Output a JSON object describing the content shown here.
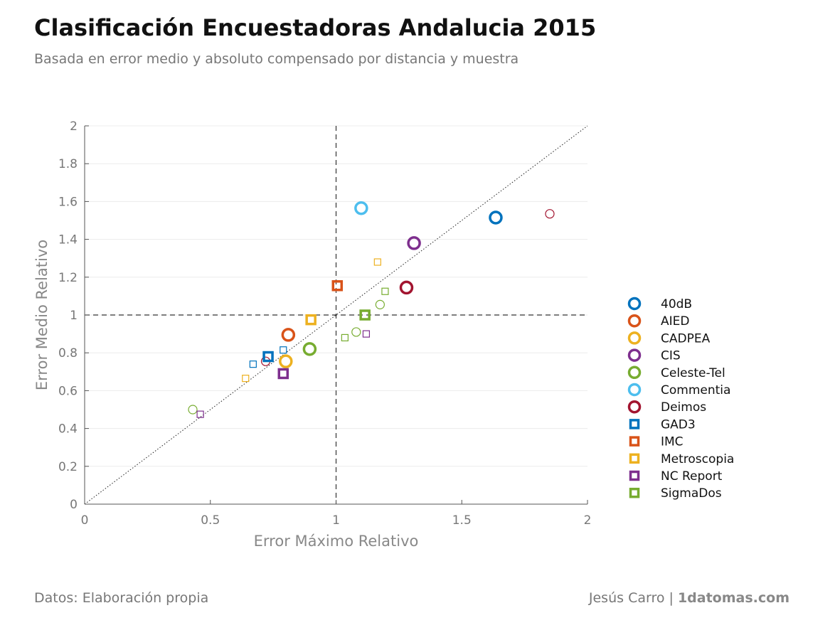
{
  "header": {
    "title": "Clasificación Encuestadoras Andalucia 2015",
    "subtitle": "Basada en error medio y absoluto compensado por distancia y muestra"
  },
  "footer": {
    "source": "Datos: Elaboración propia",
    "author": "Jesús Carro | ",
    "site": "1datomas.com"
  },
  "chart_data": {
    "type": "scatter",
    "title": "Clasificación Encuestadoras Andalucia 2015",
    "subtitle": "Basada en error medio y absoluto compensado por distancia y muestra",
    "xlabel": "Error Máximo Relativo",
    "ylabel": "Error Medio Relativo",
    "xlim": [
      0,
      2
    ],
    "ylim": [
      0,
      2
    ],
    "xticks": [
      0,
      0.5,
      1,
      1.5,
      2
    ],
    "xtick_labels": [
      "0",
      "0.5",
      "1",
      "1.5",
      "2"
    ],
    "yticks": [
      0,
      0.2,
      0.4,
      0.6,
      0.8,
      1,
      1.2,
      1.4,
      1.6,
      1.8,
      2
    ],
    "ytick_labels": [
      "0",
      "0.2",
      "0.4",
      "0.6",
      "0.8",
      "1",
      "1.2",
      "1.4",
      "1.6",
      "1.8",
      "2"
    ],
    "grid": "horizontal",
    "reference_lines": {
      "vertical_x": 1,
      "horizontal_y": 1,
      "diagonal": true
    },
    "legend_position": "right",
    "series": [
      {
        "name": "40dB",
        "marker": "circle",
        "color": "#0072BD",
        "points": [
          {
            "x": 1.635,
            "y": 1.515
          }
        ]
      },
      {
        "name": "AIED",
        "marker": "circle",
        "color": "#D95319",
        "points": [
          {
            "x": 0.81,
            "y": 0.895
          }
        ]
      },
      {
        "name": "CADPEA",
        "marker": "circle",
        "color": "#EDB120",
        "points": [
          {
            "x": 0.8,
            "y": 0.755
          }
        ]
      },
      {
        "name": "CIS",
        "marker": "circle",
        "color": "#7E2F8E",
        "points": [
          {
            "x": 1.31,
            "y": 1.38
          }
        ]
      },
      {
        "name": "Celeste-Tel",
        "marker": "circle",
        "color": "#77AC30",
        "points": [
          {
            "x": 0.895,
            "y": 0.82
          },
          {
            "x": 1.175,
            "y": 1.055
          },
          {
            "x": 1.08,
            "y": 0.91
          },
          {
            "x": 0.43,
            "y": 0.5
          }
        ]
      },
      {
        "name": "Commentia",
        "marker": "circle",
        "color": "#4DBEEE",
        "points": [
          {
            "x": 1.1,
            "y": 1.565
          }
        ]
      },
      {
        "name": "Deimos",
        "marker": "circle",
        "color": "#A2142F",
        "points": [
          {
            "x": 1.28,
            "y": 1.145
          },
          {
            "x": 1.85,
            "y": 1.535
          },
          {
            "x": 0.72,
            "y": 0.755
          }
        ]
      },
      {
        "name": "GAD3",
        "marker": "square",
        "color": "#0072BD",
        "points": [
          {
            "x": 0.73,
            "y": 0.78
          },
          {
            "x": 0.79,
            "y": 0.815
          },
          {
            "x": 0.67,
            "y": 0.74
          }
        ]
      },
      {
        "name": "IMC",
        "marker": "square",
        "color": "#D95319",
        "points": [
          {
            "x": 1.005,
            "y": 1.155
          }
        ]
      },
      {
        "name": "Metroscopia",
        "marker": "square",
        "color": "#EDB120",
        "points": [
          {
            "x": 0.9,
            "y": 0.975
          },
          {
            "x": 1.165,
            "y": 1.28
          },
          {
            "x": 0.64,
            "y": 0.665
          }
        ]
      },
      {
        "name": "NC Report",
        "marker": "square",
        "color": "#7E2F8E",
        "points": [
          {
            "x": 0.79,
            "y": 0.69
          },
          {
            "x": 1.12,
            "y": 0.9
          },
          {
            "x": 0.46,
            "y": 0.475
          }
        ]
      },
      {
        "name": "SigmaDos",
        "marker": "square",
        "color": "#77AC30",
        "points": [
          {
            "x": 1.115,
            "y": 1.0
          },
          {
            "x": 1.195,
            "y": 1.125
          },
          {
            "x": 1.035,
            "y": 0.88
          }
        ]
      }
    ]
  }
}
